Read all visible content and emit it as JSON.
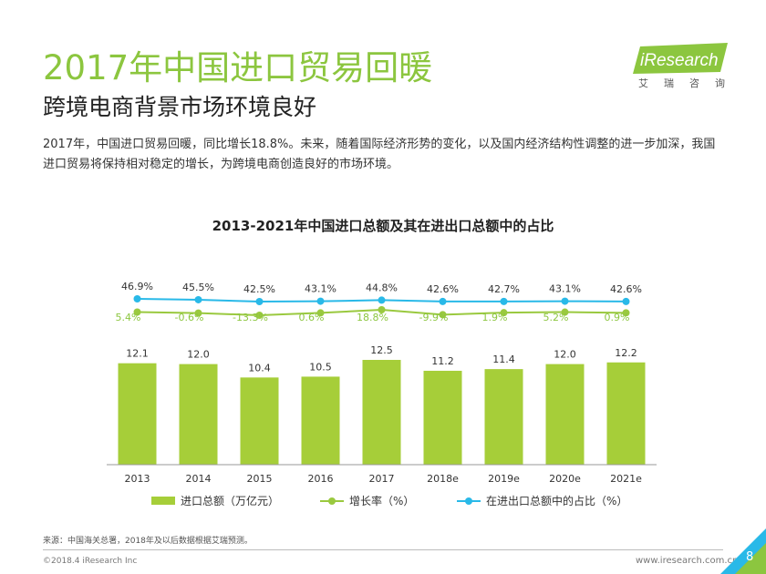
{
  "header": {
    "title": "2017年中国进口贸易回暖",
    "subtitle": "跨境电商背景市场环境良好",
    "description": "2017年，中国进口贸易回暖，同比增长18.8%。未来，随着国际经济形势的变化，以及国内经济结构性调整的进一步加深，我国进口贸易将保持相对稳定的增长，为跨境电商创造良好的市场环境。"
  },
  "logo": {
    "brand": "iResearch",
    "chinese": [
      "艾",
      "瑞",
      "咨",
      "询"
    ]
  },
  "chart_data": {
    "type": "bar",
    "title": "2013-2021年中国进口总额及其在进出口总额中的占比",
    "categories": [
      "2013",
      "2014",
      "2015",
      "2016",
      "2017",
      "2018e",
      "2019e",
      "2020e",
      "2021e"
    ],
    "series": [
      {
        "name": "进口总额（万亿元）",
        "type": "bar",
        "color": "#a6ce39",
        "values": [
          12.1,
          12.0,
          10.4,
          10.5,
          12.5,
          11.2,
          11.4,
          12.0,
          12.2
        ],
        "labels": [
          "12.1",
          "12.0",
          "10.4",
          "10.5",
          "12.5",
          "11.2",
          "11.4",
          "12.0",
          "12.2"
        ]
      },
      {
        "name": "增长率（%）",
        "type": "line",
        "color": "#9ac93f",
        "values": [
          5.4,
          -0.6,
          -13.3,
          0.6,
          18.8,
          -9.9,
          1.9,
          5.2,
          0.9
        ],
        "labels": [
          "5.4%",
          "-0.6%",
          "-13.3%",
          "0.6%",
          "18.8%",
          "-9.9%",
          "1.9%",
          "5.2%",
          "0.9%"
        ]
      },
      {
        "name": "在进出口总额中的占比（%）",
        "type": "line",
        "color": "#29b9e8",
        "values": [
          46.9,
          45.5,
          42.5,
          43.1,
          44.8,
          42.6,
          42.7,
          43.1,
          42.6
        ],
        "labels": [
          "46.9%",
          "45.5%",
          "42.5%",
          "43.1%",
          "44.8%",
          "42.6%",
          "42.7%",
          "43.1%",
          "42.6%"
        ]
      }
    ],
    "grid": false,
    "legend_position": "bottom"
  },
  "footer": {
    "source": "来源：中国海关总署，2018年及以后数据根据艾瑞预测。",
    "copyright": "©2018.4 iResearch Inc",
    "url": "www.iresearch.com.cn",
    "page": "8"
  }
}
